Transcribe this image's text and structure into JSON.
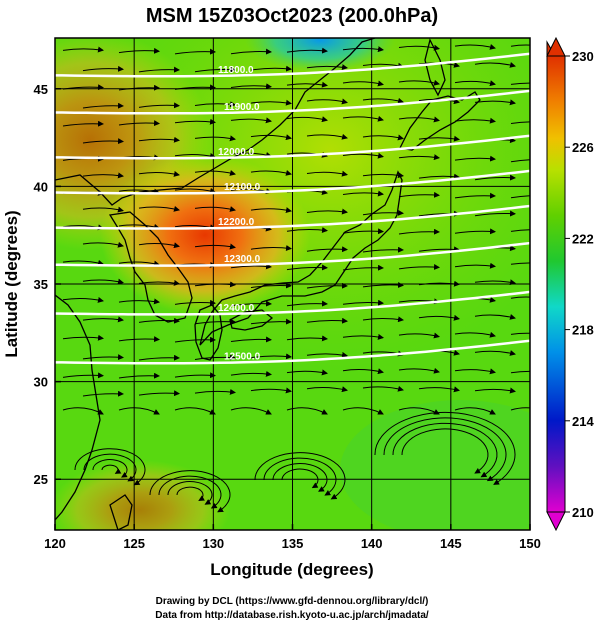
{
  "figure": {
    "title": "MSM 15Z03Oct2023 (200.0hPa)",
    "xlabel": "Longitude (degrees)",
    "ylabel": "Latitude  (degrees)",
    "credit_line1": "Drawing by DCL (https://www.gfd-dennou.org/library/dcl/)",
    "credit_line2": "Data from http://database.rish.kyoto-u.ac.jp/arch/jmadata/"
  },
  "map": {
    "lon_range": [
      120,
      150
    ],
    "lat_range": [
      22.4,
      47.6
    ],
    "lon_ticks": [
      "120",
      "125",
      "130",
      "135",
      "140",
      "145",
      "150"
    ],
    "lat_ticks": [
      "25",
      "30",
      "35",
      "40",
      "45"
    ],
    "grid_lines": true,
    "shaded_field": "temperature",
    "warm_core": {
      "lon": 130,
      "lat": 37.8,
      "value": 228.5
    },
    "cold_spot": {
      "lon": 136,
      "lat": 47.5,
      "value": 217.5
    },
    "background_value": 223,
    "height_contours": [
      {
        "label": "11800.0",
        "lat": 46.2
      },
      {
        "label": "11900.0",
        "lat": 44.3
      },
      {
        "label": "12000.0",
        "lat": 42.0
      },
      {
        "label": "12100.0",
        "lat": 40.2
      },
      {
        "label": "12200.0",
        "lat": 38.4
      },
      {
        "label": "12300.0",
        "lat": 36.5
      },
      {
        "label": "12400.0",
        "lat": 34.0
      },
      {
        "label": "12500.0",
        "lat": 31.5
      }
    ]
  },
  "colorbar": {
    "min": 210,
    "max": 230,
    "tick_labels": [
      "230",
      "226",
      "222",
      "218",
      "214",
      "210"
    ],
    "colors": [
      "#e000d0",
      "#6010c0",
      "#0018c8",
      "#0090e8",
      "#10d8c8",
      "#20c830",
      "#60d000",
      "#b8e000",
      "#f0c000",
      "#f08000",
      "#e03000"
    ]
  }
}
